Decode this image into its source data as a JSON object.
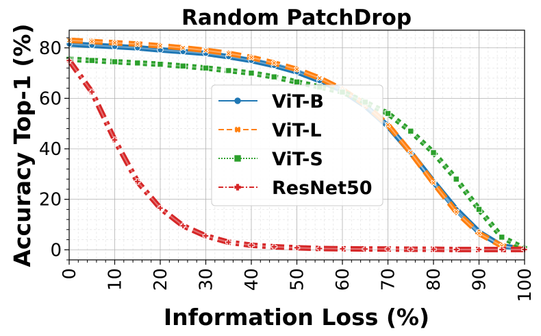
{
  "chart_data": {
    "type": "line",
    "title": "Random PatchDrop",
    "xlabel": "Information Loss (%)",
    "ylabel": "Accuracy Top-1 (%)",
    "xlim": [
      0,
      100
    ],
    "ylim": [
      -4,
      87
    ],
    "xticks": [
      "0",
      "10",
      "20",
      "30",
      "40",
      "50",
      "60",
      "70",
      "80",
      "90",
      "100"
    ],
    "yticks": [
      "0",
      "20",
      "40",
      "60",
      "80"
    ],
    "grid": true,
    "legend_position": "center",
    "x": [
      0,
      5,
      10,
      15,
      20,
      25,
      30,
      35,
      40,
      45,
      50,
      55,
      60,
      65,
      70,
      75,
      80,
      85,
      90,
      95,
      100
    ],
    "series": [
      {
        "name": "ViT-B",
        "color": "#1f77b4",
        "marker": "circle",
        "linestyle": "solid",
        "values": [
          81.5,
          81.0,
          80.5,
          80.0,
          79.2,
          78.5,
          77.8,
          76.5,
          75.0,
          73.0,
          70.5,
          67.0,
          63.0,
          57.0,
          49.0,
          38.5,
          27.0,
          16.0,
          7.0,
          1.5,
          0.2
        ]
      },
      {
        "name": "ViT-L",
        "color": "#ff7f0e",
        "marker": "x",
        "linestyle": "dashed",
        "values": [
          83.0,
          82.5,
          82.0,
          81.5,
          80.8,
          80.0,
          79.0,
          77.8,
          76.2,
          74.0,
          71.5,
          68.0,
          63.5,
          57.5,
          49.5,
          38.5,
          26.5,
          15.0,
          6.5,
          1.5,
          0.2
        ]
      },
      {
        "name": "ViT-S",
        "color": "#2ca02c",
        "marker": "square",
        "linestyle": "dotted",
        "values": [
          75.5,
          75.0,
          74.5,
          74.0,
          73.5,
          72.8,
          72.0,
          71.0,
          70.0,
          68.5,
          66.5,
          64.5,
          62.5,
          58.5,
          54.0,
          47.0,
          38.5,
          28.0,
          16.0,
          5.0,
          0.5
        ]
      },
      {
        "name": "ResNet50",
        "color": "#d62728",
        "marker": "plus",
        "linestyle": "dashdot",
        "values": [
          75.0,
          62.5,
          43.5,
          27.0,
          16.5,
          9.5,
          5.5,
          3.0,
          1.8,
          1.2,
          0.8,
          0.5,
          0.4,
          0.3,
          0.3,
          0.2,
          0.2,
          0.1,
          0.1,
          0.1,
          0.1
        ]
      }
    ]
  }
}
